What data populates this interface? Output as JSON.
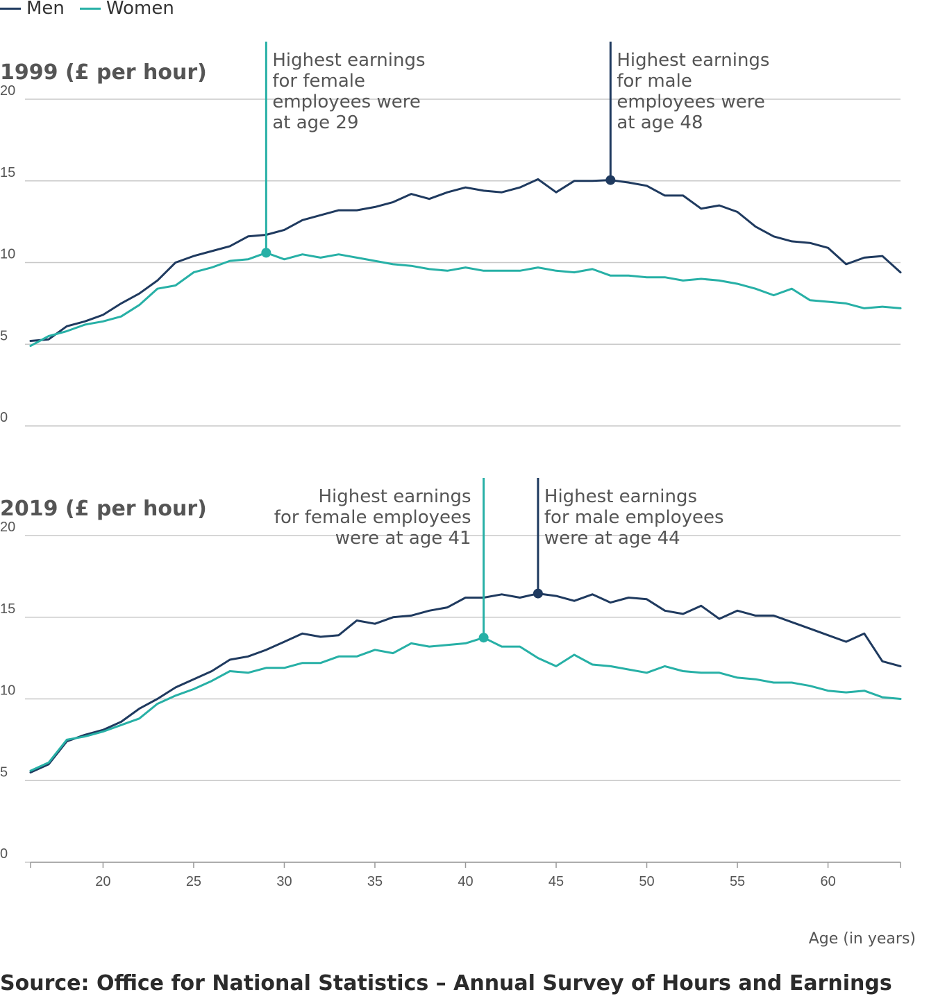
{
  "legend": [
    {
      "label": "Men",
      "color": "#1f3a5f"
    },
    {
      "label": "Women",
      "color": "#27b0a6"
    }
  ],
  "source": "Source: Office for National Statistics – Annual Survey of Hours and Earnings",
  "x_axis_label": "Age (in years)",
  "x_ticks": [
    20,
    25,
    30,
    35,
    40,
    45,
    50,
    55,
    60
  ],
  "colors": {
    "men": "#1f3a5f",
    "women": "#27b0a6",
    "grid": "#c8c8c8",
    "text": "#555555"
  },
  "chart_data": [
    {
      "type": "line",
      "title": "1999 (£ per hour)",
      "xlabel": "Age (in years)",
      "ylabel": "",
      "xlim": [
        16,
        64
      ],
      "ylim": [
        0,
        20
      ],
      "y_ticks": [
        0,
        5,
        10,
        15,
        20
      ],
      "grid": true,
      "x": [
        16,
        17,
        18,
        19,
        20,
        21,
        22,
        23,
        24,
        25,
        26,
        27,
        28,
        29,
        30,
        31,
        32,
        33,
        34,
        35,
        36,
        37,
        38,
        39,
        40,
        41,
        42,
        43,
        44,
        45,
        46,
        47,
        48,
        49,
        50,
        51,
        52,
        53,
        54,
        55,
        56,
        57,
        58,
        59,
        60,
        61,
        62,
        63,
        64
      ],
      "series": [
        {
          "name": "Men",
          "color": "#1f3a5f",
          "values": [
            5.2,
            5.3,
            6.1,
            6.4,
            6.8,
            7.5,
            8.1,
            8.9,
            10.0,
            10.4,
            10.7,
            11.0,
            11.6,
            11.7,
            12.0,
            12.6,
            12.9,
            13.2,
            13.2,
            13.4,
            13.7,
            14.2,
            13.9,
            14.3,
            14.6,
            14.4,
            14.3,
            14.6,
            15.1,
            14.3,
            15.0,
            15.0,
            15.05,
            14.9,
            14.7,
            14.1,
            14.1,
            13.3,
            13.5,
            13.1,
            12.2,
            11.6,
            11.3,
            11.2,
            10.9,
            9.9,
            10.3,
            10.4,
            9.4
          ]
        },
        {
          "name": "Women",
          "color": "#27b0a6",
          "values": [
            4.9,
            5.5,
            5.8,
            6.2,
            6.4,
            6.7,
            7.4,
            8.4,
            8.6,
            9.4,
            9.7,
            10.1,
            10.2,
            10.6,
            10.2,
            10.5,
            10.3,
            10.5,
            10.3,
            10.1,
            9.9,
            9.8,
            9.6,
            9.5,
            9.7,
            9.5,
            9.5,
            9.5,
            9.7,
            9.5,
            9.4,
            9.6,
            9.2,
            9.2,
            9.1,
            9.1,
            8.9,
            9.0,
            8.9,
            8.7,
            8.4,
            8.0,
            8.4,
            7.7,
            7.6,
            7.5,
            7.2,
            7.3,
            7.2
          ]
        }
      ],
      "annotations": [
        {
          "series": "Women",
          "age": 29,
          "value": 10.6,
          "lines": [
            "Highest earnings",
            "for female",
            "employees were",
            "at age 29"
          ],
          "align": "left"
        },
        {
          "series": "Men",
          "age": 48,
          "value": 15.05,
          "lines": [
            "Highest earnings",
            "for male",
            "employees were",
            "at age 48"
          ],
          "align": "left"
        }
      ]
    },
    {
      "type": "line",
      "title": "2019 (£ per hour)",
      "xlabel": "Age (in years)",
      "ylabel": "",
      "xlim": [
        16,
        64
      ],
      "ylim": [
        0,
        20
      ],
      "y_ticks": [
        0,
        5,
        10,
        15,
        20
      ],
      "grid": true,
      "x": [
        16,
        17,
        18,
        19,
        20,
        21,
        22,
        23,
        24,
        25,
        26,
        27,
        28,
        29,
        30,
        31,
        32,
        33,
        34,
        35,
        36,
        37,
        38,
        39,
        40,
        41,
        42,
        43,
        44,
        45,
        46,
        47,
        48,
        49,
        50,
        51,
        52,
        53,
        54,
        55,
        56,
        57,
        58,
        59,
        60,
        61,
        62,
        63,
        64
      ],
      "series": [
        {
          "name": "Men",
          "color": "#1f3a5f",
          "values": [
            5.5,
            6.0,
            7.4,
            7.8,
            8.1,
            8.6,
            9.4,
            10.0,
            10.7,
            11.2,
            11.7,
            12.4,
            12.6,
            13.0,
            13.5,
            14.0,
            13.8,
            13.9,
            14.8,
            14.6,
            15.0,
            15.1,
            15.4,
            15.6,
            16.2,
            16.2,
            16.4,
            16.2,
            16.45,
            16.3,
            16.0,
            16.4,
            15.9,
            16.2,
            16.1,
            15.4,
            15.2,
            15.7,
            14.9,
            15.4,
            15.1,
            15.1,
            14.7,
            14.3,
            13.9,
            13.5,
            14.0,
            12.3,
            12.0
          ]
        },
        {
          "name": "Women",
          "color": "#27b0a6",
          "values": [
            5.6,
            6.1,
            7.5,
            7.7,
            8.0,
            8.4,
            8.8,
            9.7,
            10.2,
            10.6,
            11.1,
            11.7,
            11.6,
            11.9,
            11.9,
            12.2,
            12.2,
            12.6,
            12.6,
            13.0,
            12.8,
            13.4,
            13.2,
            13.3,
            13.4,
            13.75,
            13.2,
            13.2,
            12.5,
            12.0,
            12.7,
            12.1,
            12.0,
            11.8,
            11.6,
            12.0,
            11.7,
            11.6,
            11.6,
            11.3,
            11.2,
            11.0,
            11.0,
            10.8,
            10.5,
            10.4,
            10.5,
            10.1,
            10.0
          ]
        }
      ],
      "annotations": [
        {
          "series": "Women",
          "age": 41,
          "value": 13.75,
          "lines": [
            "Highest earnings",
            "for female employees",
            "were at age 41"
          ],
          "align": "right"
        },
        {
          "series": "Men",
          "age": 44,
          "value": 16.45,
          "lines": [
            "Highest earnings",
            "for male employees",
            "were at age 44"
          ],
          "align": "left"
        }
      ]
    }
  ]
}
